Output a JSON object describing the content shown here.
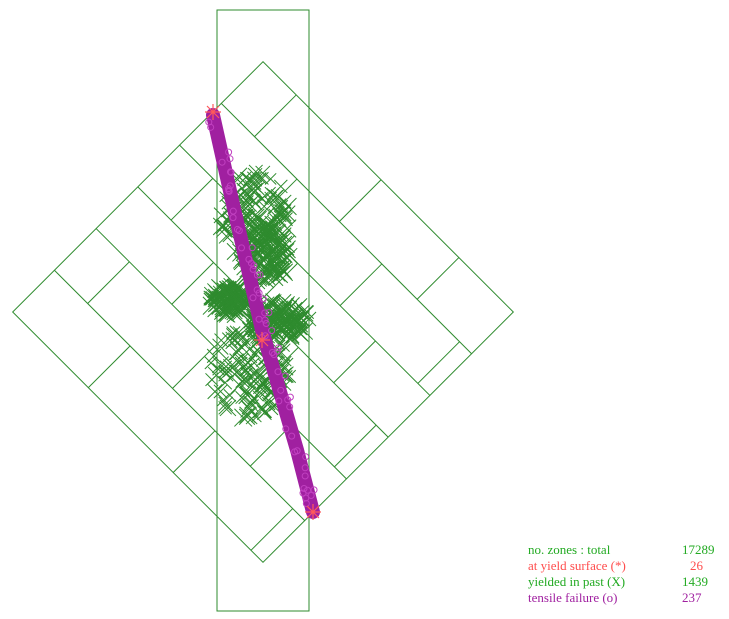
{
  "legend": [
    {
      "label": "no. zones : total",
      "value": "17289"
    },
    {
      "label": "at yield surface (*)",
      "value": "26"
    },
    {
      "label": "yielded in past (X)",
      "value": "1439"
    },
    {
      "label": "tensile failure (o)",
      "value": "237"
    }
  ]
}
